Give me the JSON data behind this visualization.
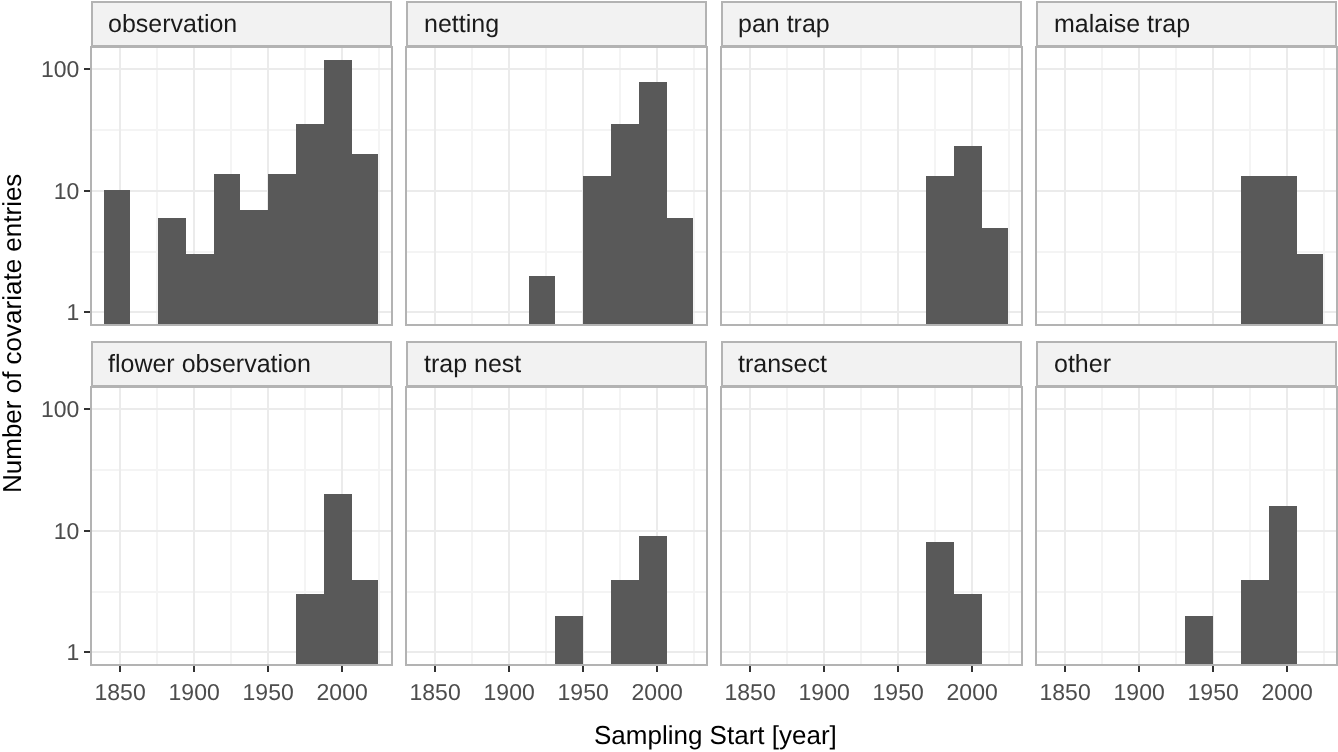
{
  "chart_data": [
    {
      "type": "histogram",
      "title": "observation",
      "ylabel": "Number of covariate entries",
      "bins": [
        1838.6,
        1857.2,
        1875.8,
        1894.4,
        1913,
        1931.6,
        1950.2,
        1968.8,
        1987.4,
        2006,
        2024.6
      ],
      "values": [
        10,
        null,
        6,
        3,
        14,
        7,
        14,
        35,
        120,
        20
      ],
      "color": "#595959",
      "log": "y",
      "xlim": [
        1831,
        2033
      ],
      "xticks": [
        1850,
        1900,
        1950,
        2000
      ],
      "ylim": [
        0.8,
        150
      ],
      "yticks": [
        1,
        10,
        100
      ],
      "grid": true,
      "tick_labels": "y"
    },
    {
      "type": "histogram",
      "title": "netting",
      "bins": [
        1838.6,
        1857.2,
        1875.8,
        1894.4,
        1913,
        1931.6,
        1950.2,
        1968.8,
        1987.4,
        2006,
        2024.6
      ],
      "values": [
        null,
        null,
        null,
        null,
        2,
        null,
        13,
        35,
        80,
        6
      ],
      "color": "#595959",
      "log": "y",
      "xlim": [
        1831,
        2033
      ],
      "xticks": [
        1850,
        1900,
        1950,
        2000
      ],
      "ylim": [
        0.8,
        150
      ],
      "yticks": [
        1,
        10,
        100
      ],
      "grid": true,
      "tick_labels": false
    },
    {
      "type": "histogram",
      "title": "pan trap",
      "bins": [
        1838.6,
        1857.2,
        1875.8,
        1894.4,
        1913,
        1931.6,
        1950.2,
        1968.8,
        1987.4,
        2006,
        2024.6
      ],
      "values": [
        null,
        null,
        null,
        null,
        null,
        null,
        null,
        13,
        23,
        5
      ],
      "color": "#595959",
      "log": "y",
      "xlim": [
        1831,
        2033
      ],
      "xticks": [
        1850,
        1900,
        1950,
        2000
      ],
      "ylim": [
        0.8,
        150
      ],
      "yticks": [
        1,
        10,
        100
      ],
      "grid": true,
      "tick_labels": false
    },
    {
      "type": "histogram",
      "title": "malaise trap",
      "bins": [
        1838.6,
        1857.2,
        1875.8,
        1894.4,
        1913,
        1931.6,
        1950.2,
        1968.8,
        1987.4,
        2006,
        2024.6
      ],
      "values": [
        null,
        null,
        null,
        null,
        null,
        null,
        null,
        13,
        13,
        3
      ],
      "color": "#595959",
      "log": "y",
      "xlim": [
        1831,
        2033
      ],
      "xticks": [
        1850,
        1900,
        1950,
        2000
      ],
      "ylim": [
        0.8,
        150
      ],
      "yticks": [
        1,
        10,
        100
      ],
      "grid": true,
      "tick_labels": false
    },
    {
      "type": "histogram",
      "title": "flower observation",
      "bins": [
        1838.6,
        1857.2,
        1875.8,
        1894.4,
        1913,
        1931.6,
        1950.2,
        1968.8,
        1987.4,
        2006,
        2024.6
      ],
      "values": [
        null,
        null,
        null,
        null,
        null,
        null,
        null,
        3,
        20,
        4
      ],
      "color": "#595959",
      "log": "y",
      "xlim": [
        1831,
        2033
      ],
      "xticks": [
        1850,
        1900,
        1950,
        2000
      ],
      "ylim": [
        0.8,
        150
      ],
      "yticks": [
        1,
        10,
        100
      ],
      "grid": true
    },
    {
      "type": "histogram",
      "title": "trap nest",
      "xlabel": "Sampling Start [year]",
      "bins": [
        1838.6,
        1857.2,
        1875.8,
        1894.4,
        1913,
        1931.6,
        1950.2,
        1968.8,
        1987.4,
        2006,
        2024.6
      ],
      "values": [
        null,
        null,
        null,
        null,
        null,
        2,
        null,
        4,
        9,
        null
      ],
      "color": "#595959",
      "log": "y",
      "xlim": [
        1831,
        2033
      ],
      "xticks": [
        1850,
        1900,
        1950,
        2000
      ],
      "ylim": [
        0.8,
        150
      ],
      "yticks": [
        1,
        10,
        100
      ],
      "grid": true,
      "tick_labels": "x"
    },
    {
      "type": "histogram",
      "title": "transect",
      "bins": [
        1838.6,
        1857.2,
        1875.8,
        1894.4,
        1913,
        1931.6,
        1950.2,
        1968.8,
        1987.4,
        2006,
        2024.6
      ],
      "values": [
        null,
        null,
        null,
        null,
        null,
        null,
        null,
        8,
        3,
        null
      ],
      "color": "#595959",
      "log": "y",
      "xlim": [
        1831,
        2033
      ],
      "xticks": [
        1850,
        1900,
        1950,
        2000
      ],
      "ylim": [
        0.8,
        150
      ],
      "yticks": [
        1,
        10,
        100
      ],
      "grid": true,
      "tick_labels": "x"
    },
    {
      "type": "histogram",
      "title": "other",
      "bins": [
        1838.6,
        1857.2,
        1875.8,
        1894.4,
        1913,
        1931.6,
        1950.2,
        1968.8,
        1987.4,
        2006,
        2024.6
      ],
      "values": [
        null,
        null,
        null,
        null,
        null,
        2,
        null,
        4,
        16,
        null
      ],
      "color": "#595959",
      "log": "y",
      "xlim": [
        1831,
        2033
      ],
      "xticks": [
        1850,
        1900,
        1950,
        2000
      ],
      "ylim": [
        0.8,
        150
      ],
      "yticks": [
        1,
        10,
        100
      ],
      "grid": true,
      "tick_labels": "x"
    }
  ]
}
